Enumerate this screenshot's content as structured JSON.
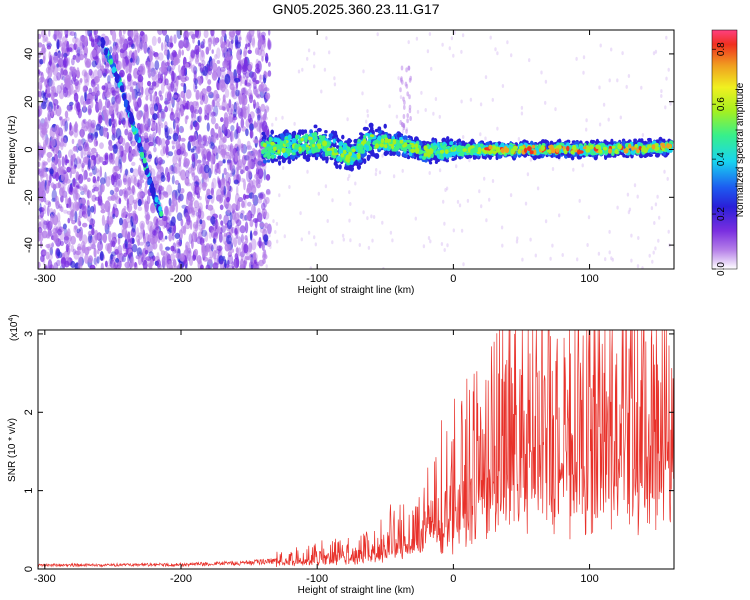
{
  "title": "GN05.2025.360.23.11.G17",
  "chart_data": [
    {
      "type": "heatmap",
      "title": "GN05.2025.360.23.11.G17",
      "xlabel": "Height of straight line (km)",
      "ylabel": "Frequency (Hz)",
      "xlim": [
        -305,
        162
      ],
      "ylim": [
        -50,
        50
      ],
      "xticks": [
        "-300",
        "-200",
        "-100",
        "0",
        "100"
      ],
      "yticks": [
        "-40",
        "-20",
        "0",
        "20",
        "40"
      ],
      "colorbar": {
        "label": "Normalized spectral amplitude",
        "range": [
          0,
          0.87
        ],
        "ticks": [
          "0.0",
          "0.2",
          "0.4",
          "0.6",
          "0.8"
        ],
        "colormap": [
          "#ffffff",
          "#b57fe8",
          "#7a2ee0",
          "#2a1fd8",
          "#1d5af0",
          "#18d4f0",
          "#38f08a",
          "#a4f020",
          "#f0f020",
          "#f0a020",
          "#f03020",
          "#ff4080"
        ]
      },
      "features": [
        {
          "name": "diagonal streak",
          "points": [
            [
              -258,
              45
            ],
            [
              -245,
              28
            ],
            [
              -232,
              5
            ],
            [
              -222,
              -15
            ],
            [
              -214,
              -28
            ]
          ]
        },
        {
          "name": "main band",
          "points": [
            [
              -140,
              0
            ],
            [
              -100,
              3
            ],
            [
              -75,
              -3
            ],
            [
              -60,
              4
            ],
            [
              -40,
              2
            ],
            [
              -20,
              -1
            ],
            [
              0,
              0
            ],
            [
              50,
              0
            ],
            [
              100,
              0
            ],
            [
              160,
              1
            ]
          ]
        }
      ]
    },
    {
      "type": "line",
      "xlabel": "Height of straight line (km)",
      "ylabel": "SNR (10 * v/v)",
      "scale_label": "(x10",
      "scale_exponent": "4",
      "xlim": [
        -305,
        162
      ],
      "ylim": [
        0,
        3.05
      ],
      "xticks": [
        "-300",
        "-200",
        "-100",
        "0",
        "100"
      ],
      "yticks": [
        "0",
        "1",
        "2",
        "3"
      ],
      "color": "#e8312a",
      "envelope_x": [
        -305,
        -200,
        -150,
        -120,
        -100,
        -80,
        -60,
        -40,
        -20,
        0,
        20,
        40,
        60,
        80,
        100,
        120,
        140,
        162
      ],
      "envelope_y": [
        0.06,
        0.07,
        0.1,
        0.15,
        0.2,
        0.25,
        0.3,
        0.45,
        0.75,
        1.1,
        1.7,
        2.0,
        2.2,
        2.1,
        2.2,
        2.3,
        2.2,
        2.0
      ],
      "peaks_x": [
        30,
        45,
        70,
        120,
        140
      ],
      "peaks_y": [
        2.9,
        3.0,
        3.05,
        2.75,
        3.05
      ]
    }
  ]
}
